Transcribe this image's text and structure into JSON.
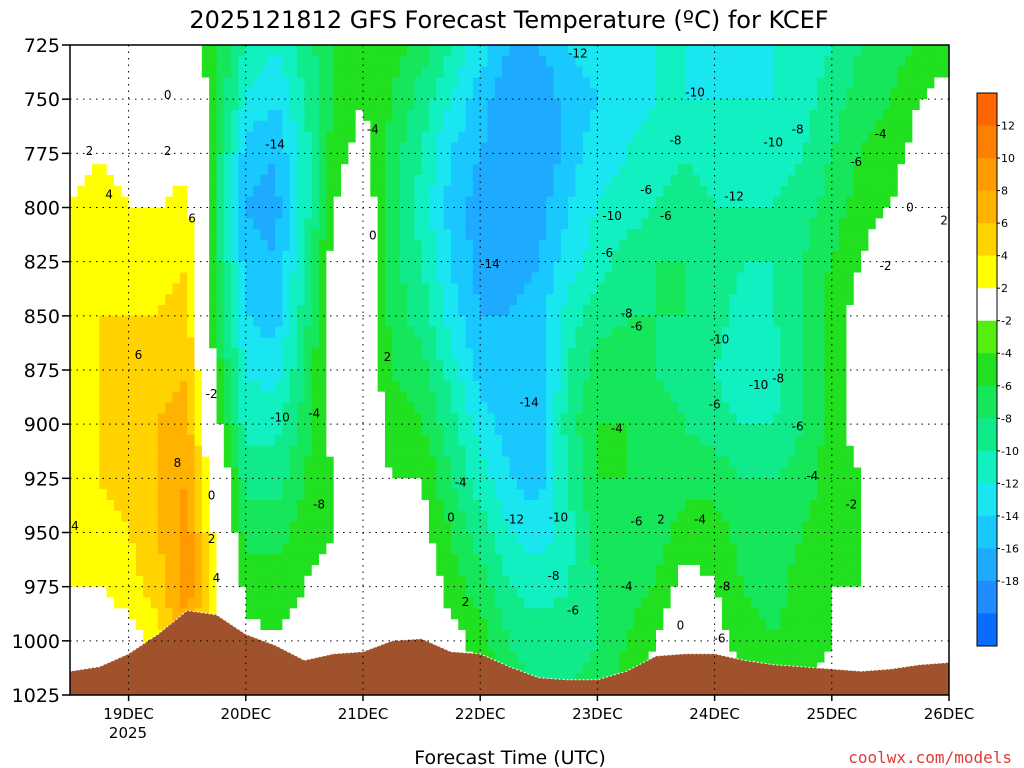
{
  "chart_data": {
    "type": "heatmap",
    "title": "2025121812 GFS Forecast Temperature (ºC) for KCEF",
    "xlabel": "Forecast Time (UTC)",
    "ylabel": "Pressure (hPa)",
    "credit": "coolwx.com/models",
    "x_ticks": [
      "19DEC",
      "20DEC",
      "21DEC",
      "22DEC",
      "23DEC",
      "24DEC",
      "25DEC",
      "26DEC"
    ],
    "x_subtick": "2025",
    "y_ticks": [
      725,
      750,
      775,
      800,
      825,
      850,
      875,
      900,
      925,
      950,
      975,
      1000,
      1025
    ],
    "ylim": [
      725,
      1025
    ],
    "xlim_hours": [
      -12,
      168
    ],
    "grid": true,
    "colorbar": {
      "levels": [
        -20,
        -18,
        -16,
        -14,
        -12,
        -10,
        -8,
        -6,
        -4,
        -2,
        2,
        4,
        6,
        8,
        10,
        12,
        14
      ],
      "colors": [
        "#0a6cff",
        "#1f8cff",
        "#1eaaff",
        "#18c8ff",
        "#19e6f0",
        "#10f0c0",
        "#10ea8a",
        "#16e65a",
        "#20e020",
        "#55ee10",
        "#ffffff",
        "#ffff00",
        "#ffd200",
        "#ffb200",
        "#ff9a00",
        "#ff8000",
        "#ff6500"
      ],
      "tick_labels": [
        "12",
        "10",
        "8",
        "6",
        "4",
        "2",
        "-2",
        "-4",
        "-6",
        "-8",
        "-10",
        "-12",
        "-14",
        "-16",
        "-18"
      ]
    },
    "columns": [
      {
        "h": -12,
        "t": [
          3,
          3,
          3,
          4,
          4,
          4,
          5,
          5,
          5,
          4,
          4,
          3,
          2
        ]
      },
      {
        "h": -6,
        "t": [
          0,
          2,
          4,
          5,
          5,
          6,
          6,
          6,
          6,
          5,
          4,
          2,
          1
        ]
      },
      {
        "h": 0,
        "t": [
          -1,
          1,
          3,
          4,
          5,
          6,
          7,
          7,
          7,
          6,
          5,
          3,
          1
        ]
      },
      {
        "h": 6,
        "t": [
          -2,
          1,
          2,
          4,
          5,
          6,
          7,
          8,
          8,
          8,
          7,
          5,
          3
        ]
      },
      {
        "h": 12,
        "t": [
          0,
          2,
          3,
          5,
          6,
          7,
          8,
          9,
          10,
          11,
          11,
          10,
          9
        ]
      },
      {
        "h": 18,
        "t": [
          -4,
          -4,
          -5,
          -5,
          -5,
          -4,
          -3,
          -1,
          2,
          3,
          4,
          3,
          2
        ]
      },
      {
        "h": 24,
        "t": [
          -8,
          -10,
          -13,
          -14,
          -13,
          -12,
          -10,
          -9,
          -7,
          -5,
          -3,
          -1,
          0
        ]
      },
      {
        "h": 30,
        "t": [
          -10,
          -12,
          -14,
          -15,
          -14,
          -13,
          -11,
          -9,
          -7,
          -5,
          -3,
          -2,
          -1
        ]
      },
      {
        "h": 36,
        "t": [
          -7,
          -8,
          -9,
          -9,
          -8,
          -7,
          -6,
          -5,
          -4,
          -3,
          -2,
          -1,
          -1
        ]
      },
      {
        "h": 42,
        "t": [
          -4,
          -4,
          -3,
          -2,
          -1,
          0,
          0,
          -1,
          -2,
          -2,
          -1,
          0,
          0
        ]
      },
      {
        "h": 48,
        "t": [
          -3,
          -2,
          -1,
          0,
          1,
          2,
          1,
          0,
          -1,
          -1,
          0,
          1,
          1
        ]
      },
      {
        "h": 54,
        "t": [
          -3,
          -4,
          -5,
          -5,
          -5,
          -5,
          -4,
          -3,
          -2,
          -1,
          0,
          1,
          1
        ]
      },
      {
        "h": 60,
        "t": [
          -5,
          -7,
          -8,
          -9,
          -8,
          -7,
          -5,
          -4,
          -2,
          -1,
          0,
          1,
          2
        ]
      },
      {
        "h": 66,
        "t": [
          -8,
          -10,
          -12,
          -13,
          -12,
          -11,
          -9,
          -7,
          -6,
          -4,
          -3,
          -1,
          0
        ]
      },
      {
        "h": 72,
        "t": [
          -11,
          -13,
          -14,
          -15,
          -15,
          -14,
          -13,
          -11,
          -9,
          -7,
          -5,
          -3,
          -2
        ]
      },
      {
        "h": 78,
        "t": [
          -14,
          -16,
          -16,
          -16,
          -15,
          -14,
          -14,
          -13,
          -12,
          -10,
          -8,
          -6,
          -5
        ]
      },
      {
        "h": 84,
        "t": [
          -14,
          -16,
          -16,
          -15,
          -14,
          -13,
          -14,
          -14,
          -13,
          -11,
          -9,
          -7,
          -6
        ]
      },
      {
        "h": 90,
        "t": [
          -12,
          -13,
          -13,
          -12,
          -11,
          -9,
          -8,
          -7,
          -8,
          -9,
          -8,
          -7,
          -6
        ]
      },
      {
        "h": 96,
        "t": [
          -11,
          -12,
          -11,
          -10,
          -9,
          -7,
          -5,
          -4,
          -4,
          -5,
          -6,
          -6,
          -5
        ]
      },
      {
        "h": 102,
        "t": [
          -10,
          -11,
          -10,
          -9,
          -7,
          -6,
          -5,
          -4,
          -4,
          -5,
          -5,
          -4,
          -3
        ]
      },
      {
        "h": 108,
        "t": [
          -10,
          -10,
          -9,
          -8,
          -6,
          -6,
          -6,
          -5,
          -5,
          -5,
          -4,
          -2,
          -1
        ]
      },
      {
        "h": 114,
        "t": [
          -10,
          -10,
          -8,
          -7,
          -6,
          -6,
          -7,
          -6,
          -5,
          -3,
          -1,
          1,
          2
        ]
      },
      {
        "h": 120,
        "t": [
          -11,
          -10,
          -9,
          -8,
          -7,
          -7,
          -8,
          -7,
          -5,
          -3,
          -2,
          -1,
          0
        ]
      },
      {
        "h": 126,
        "t": [
          -11,
          -10,
          -9,
          -8,
          -8,
          -9,
          -10,
          -8,
          -6,
          -5,
          -4,
          -3,
          -2
        ]
      },
      {
        "h": 132,
        "t": [
          -10,
          -10,
          -9,
          -8,
          -8,
          -8,
          -9,
          -8,
          -6,
          -5,
          -5,
          -4,
          -3
        ]
      },
      {
        "h": 138,
        "t": [
          -9,
          -9,
          -8,
          -7,
          -6,
          -6,
          -6,
          -6,
          -5,
          -4,
          -3,
          -3,
          -2
        ]
      },
      {
        "h": 144,
        "t": [
          -8,
          -7,
          -6,
          -5,
          -4,
          -3,
          -3,
          -3,
          -3,
          -3,
          -2,
          -2,
          -1
        ]
      },
      {
        "h": 150,
        "t": [
          -6,
          -5,
          -4,
          -3,
          -2,
          -1,
          -1,
          -1,
          -2,
          -2,
          -2,
          -1,
          -1
        ]
      },
      {
        "h": 156,
        "t": [
          -5,
          -4,
          -3,
          -2,
          0,
          1,
          1,
          0,
          -1,
          -2,
          -2,
          -1,
          -1
        ]
      },
      {
        "h": 162,
        "t": [
          -4,
          -2,
          -1,
          0,
          1,
          2,
          2,
          1,
          0,
          -1,
          -2,
          -2,
          -1
        ]
      },
      {
        "h": 168,
        "t": [
          -3,
          -1,
          0,
          1,
          2,
          3,
          3,
          2,
          1,
          0,
          -1,
          -1,
          0
        ]
      }
    ],
    "terrain": [
      {
        "h": -12,
        "p": 1014
      },
      {
        "h": -6,
        "p": 1012
      },
      {
        "h": 0,
        "p": 1006
      },
      {
        "h": 6,
        "p": 997
      },
      {
        "h": 12,
        "p": 986
      },
      {
        "h": 18,
        "p": 988
      },
      {
        "h": 24,
        "p": 997
      },
      {
        "h": 30,
        "p": 1002
      },
      {
        "h": 36,
        "p": 1009
      },
      {
        "h": 42,
        "p": 1006
      },
      {
        "h": 48,
        "p": 1005
      },
      {
        "h": 54,
        "p": 1000
      },
      {
        "h": 60,
        "p": 999
      },
      {
        "h": 66,
        "p": 1005
      },
      {
        "h": 72,
        "p": 1006
      },
      {
        "h": 78,
        "p": 1012
      },
      {
        "h": 84,
        "p": 1017
      },
      {
        "h": 90,
        "p": 1018
      },
      {
        "h": 96,
        "p": 1018
      },
      {
        "h": 102,
        "p": 1014
      },
      {
        "h": 108,
        "p": 1007
      },
      {
        "h": 114,
        "p": 1006
      },
      {
        "h": 120,
        "p": 1006
      },
      {
        "h": 126,
        "p": 1009
      },
      {
        "h": 132,
        "p": 1011
      },
      {
        "h": 138,
        "p": 1012
      },
      {
        "h": 144,
        "p": 1013
      },
      {
        "h": 150,
        "p": 1014
      },
      {
        "h": 156,
        "p": 1013
      },
      {
        "h": 162,
        "p": 1011
      },
      {
        "h": 168,
        "p": 1010
      }
    ],
    "contour_labels": [
      {
        "text": "0",
        "h": 8,
        "p": 748
      },
      {
        "text": "2",
        "h": -8,
        "p": 774
      },
      {
        "text": "2",
        "h": 8,
        "p": 774
      },
      {
        "text": "4",
        "h": -4,
        "p": 794
      },
      {
        "text": "6",
        "h": 13,
        "p": 805
      },
      {
        "text": "6",
        "h": 2,
        "p": 868
      },
      {
        "text": "8",
        "h": 10,
        "p": 918
      },
      {
        "text": "-2",
        "h": 17,
        "p": 886
      },
      {
        "text": "0",
        "h": 17,
        "p": 933
      },
      {
        "text": "2",
        "h": 17,
        "p": 953
      },
      {
        "text": "4",
        "h": 18,
        "p": 971
      },
      {
        "text": "4",
        "h": -11,
        "p": 947
      },
      {
        "text": "-14",
        "h": 30,
        "p": 771
      },
      {
        "text": "-10",
        "h": 31,
        "p": 897
      },
      {
        "text": "-8",
        "h": 39,
        "p": 937
      },
      {
        "text": "-4",
        "h": 38,
        "p": 895
      },
      {
        "text": "-4",
        "h": 50,
        "p": 764
      },
      {
        "text": "0",
        "h": 50,
        "p": 813
      },
      {
        "text": "2",
        "h": 53,
        "p": 869
      },
      {
        "text": "0",
        "h": 66,
        "p": 943
      },
      {
        "text": "-4",
        "h": 68,
        "p": 927
      },
      {
        "text": "2",
        "h": 69,
        "p": 982
      },
      {
        "text": "-14",
        "h": 74,
        "p": 826
      },
      {
        "text": "-14",
        "h": 82,
        "p": 890
      },
      {
        "text": "-12",
        "h": 79,
        "p": 944
      },
      {
        "text": "-10",
        "h": 88,
        "p": 943
      },
      {
        "text": "-8",
        "h": 87,
        "p": 970
      },
      {
        "text": "-6",
        "h": 91,
        "p": 986
      },
      {
        "text": "-12",
        "h": 92,
        "p": 729
      },
      {
        "text": "-10",
        "h": 99,
        "p": 804
      },
      {
        "text": "-6",
        "h": 98,
        "p": 821
      },
      {
        "text": "-8",
        "h": 102,
        "p": 849
      },
      {
        "text": "-6",
        "h": 104,
        "p": 855
      },
      {
        "text": "-4",
        "h": 100,
        "p": 902
      },
      {
        "text": "-6",
        "h": 106,
        "p": 792
      },
      {
        "text": "-8",
        "h": 112,
        "p": 769
      },
      {
        "text": "-6",
        "h": 110,
        "p": 804
      },
      {
        "text": "-10",
        "h": 116,
        "p": 747
      },
      {
        "text": "-12",
        "h": 124,
        "p": 795
      },
      {
        "text": "-10",
        "h": 121,
        "p": 861
      },
      {
        "text": "-10",
        "h": 129,
        "p": 882
      },
      {
        "text": "-8",
        "h": 133,
        "p": 879
      },
      {
        "text": "-6",
        "h": 120,
        "p": 891
      },
      {
        "text": "-6",
        "h": 104,
        "p": 945
      },
      {
        "text": "2",
        "h": 109,
        "p": 944
      },
      {
        "text": "-4",
        "h": 117,
        "p": 944
      },
      {
        "text": "-4",
        "h": 102,
        "p": 975
      },
      {
        "text": "0",
        "h": 113,
        "p": 993
      },
      {
        "text": "-8",
        "h": 122,
        "p": 975
      },
      {
        "text": "-6",
        "h": 121,
        "p": 999
      },
      {
        "text": "-10",
        "h": 132,
        "p": 770
      },
      {
        "text": "-8",
        "h": 137,
        "p": 764
      },
      {
        "text": "-6",
        "h": 149,
        "p": 779
      },
      {
        "text": "-4",
        "h": 154,
        "p": 766
      },
      {
        "text": "0",
        "h": 160,
        "p": 800
      },
      {
        "text": "2",
        "h": 167,
        "p": 806
      },
      {
        "text": "-2",
        "h": 155,
        "p": 827
      },
      {
        "text": "-6",
        "h": 137,
        "p": 901
      },
      {
        "text": "-4",
        "h": 140,
        "p": 924
      },
      {
        "text": "-2",
        "h": 148,
        "p": 937
      }
    ]
  }
}
